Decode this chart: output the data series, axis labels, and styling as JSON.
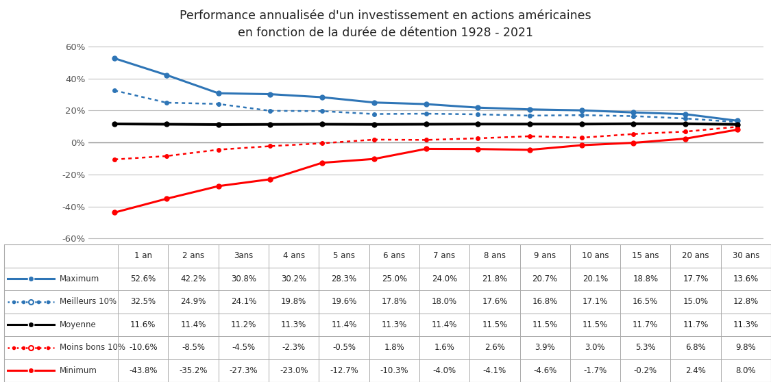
{
  "title": "Performance annualisée d'un investissement en actions américaines\nen fonction de la durée de détention 1928 - 2021",
  "categories": [
    "1 an",
    "2 ans",
    "3ans",
    "4 ans",
    "5 ans",
    "6 ans",
    "7 ans",
    "8 ans",
    "9 ans",
    "10 ans",
    "15 ans",
    "20 ans",
    "30 ans"
  ],
  "x_positions": [
    0,
    1,
    2,
    3,
    4,
    5,
    6,
    7,
    8,
    9,
    10,
    11,
    12
  ],
  "maximum": [
    52.6,
    42.2,
    30.8,
    30.2,
    28.3,
    25.0,
    24.0,
    21.8,
    20.7,
    20.1,
    18.8,
    17.7,
    13.6
  ],
  "meilleurs10": [
    32.5,
    24.9,
    24.1,
    19.8,
    19.6,
    17.8,
    18.0,
    17.6,
    16.8,
    17.1,
    16.5,
    15.0,
    12.8
  ],
  "moyenne": [
    11.6,
    11.4,
    11.2,
    11.3,
    11.4,
    11.3,
    11.4,
    11.5,
    11.5,
    11.5,
    11.7,
    11.7,
    11.3
  ],
  "moinsbons10": [
    -10.6,
    -8.5,
    -4.5,
    -2.3,
    -0.5,
    1.8,
    1.6,
    2.6,
    3.9,
    3.0,
    5.3,
    6.8,
    9.8
  ],
  "minimum": [
    -43.8,
    -35.2,
    -27.3,
    -23.0,
    -12.7,
    -10.3,
    -4.0,
    -4.1,
    -4.6,
    -1.7,
    -0.2,
    2.4,
    8.0
  ],
  "color_blue": "#2E75B6",
  "color_black": "#000000",
  "color_red": "#FF0000",
  "ylim": [
    -0.65,
    0.7
  ],
  "yticks": [
    -0.6,
    -0.4,
    -0.2,
    0.0,
    0.2,
    0.4,
    0.6
  ],
  "grid_color": "#C0C0C0",
  "legend_labels": [
    "Maximum",
    "Meilleurs 10%",
    "Moyenne",
    "Moins bons 10%",
    "Minimum"
  ],
  "table_rows": [
    [
      "52.6%",
      "42.2%",
      "30.8%",
      "30.2%",
      "28.3%",
      "25.0%",
      "24.0%",
      "21.8%",
      "20.7%",
      "20.1%",
      "18.8%",
      "17.7%",
      "13.6%"
    ],
    [
      "32.5%",
      "24.9%",
      "24.1%",
      "19.8%",
      "19.6%",
      "17.8%",
      "18.0%",
      "17.6%",
      "16.8%",
      "17.1%",
      "16.5%",
      "15.0%",
      "12.8%"
    ],
    [
      "11.6%",
      "11.4%",
      "11.2%",
      "11.3%",
      "11.4%",
      "11.3%",
      "11.4%",
      "11.5%",
      "11.5%",
      "11.5%",
      "11.7%",
      "11.7%",
      "11.3%"
    ],
    [
      "-10.6%",
      "-8.5%",
      "-4.5%",
      "-2.3%",
      "-0.5%",
      "1.8%",
      "1.6%",
      "2.6%",
      "3.9%",
      "3.0%",
      "5.3%",
      "6.8%",
      "9.8%"
    ],
    [
      "-43.8%",
      "-35.2%",
      "-27.3%",
      "-23.0%",
      "-12.7%",
      "-10.3%",
      "-4.0%",
      "-4.1%",
      "-4.6%",
      "-1.7%",
      "-0.2%",
      "2.4%",
      "8.0%"
    ]
  ]
}
